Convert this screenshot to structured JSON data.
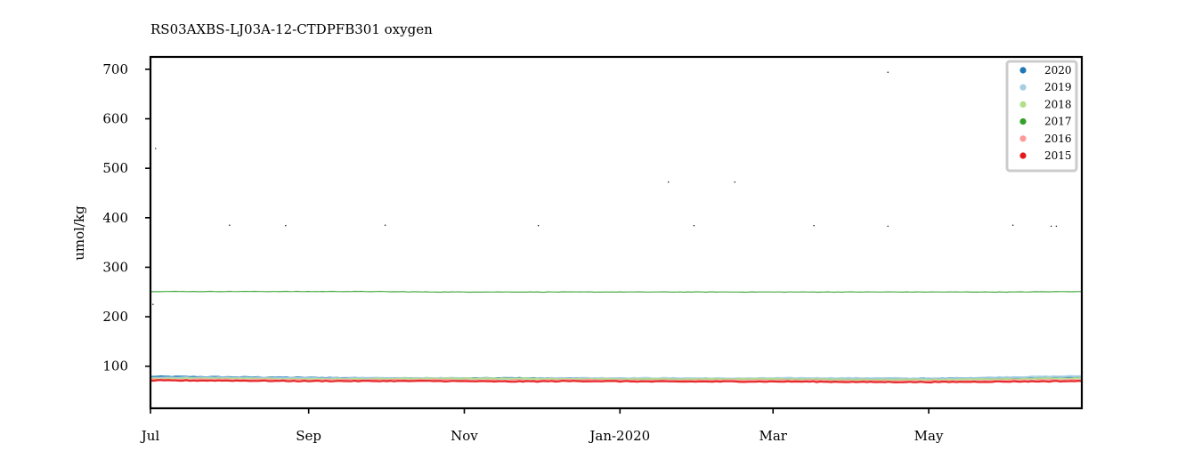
{
  "chart_data": {
    "type": "scatter",
    "title": "RS03AXBS-LJ03A-12-CTDPFB301 oxygen",
    "xlabel": "",
    "ylabel": "umol/kg",
    "x_tick_labels": [
      "Jul",
      "Sep",
      "Nov",
      "Jan-2020",
      "Mar",
      "May"
    ],
    "x_ticks": [
      "2019-07-01",
      "2019-09-01",
      "2019-11-01",
      "2020-01-01",
      "2020-03-01",
      "2020-05-01"
    ],
    "xlim": [
      "2019-07-01",
      "2020-06-30"
    ],
    "ylim": [
      15,
      725
    ],
    "y_ticks": [
      100,
      200,
      300,
      400,
      500,
      600,
      700
    ],
    "legend": {
      "position": "top-right"
    },
    "grid": false,
    "series": [
      {
        "name": "2020",
        "color": "#1f78b4",
        "x_range": [
          "2019-07-01",
          "2020-06-30"
        ],
        "values": [
          79,
          78,
          77,
          76,
          75,
          76,
          75,
          74,
          75,
          74,
          74,
          75,
          76,
          78
        ]
      },
      {
        "name": "2019",
        "color": "#a6cee3",
        "x_range": [
          "2019-07-01",
          "2020-06-30"
        ],
        "values": [
          77,
          77,
          76,
          76,
          76,
          75,
          76,
          76,
          75,
          76,
          76,
          75,
          78,
          80
        ]
      },
      {
        "name": "2018",
        "color": "#b2df8a",
        "x_range": [
          "2019-07-01",
          "2020-06-30"
        ],
        "values": [
          75,
          75,
          74,
          74,
          75,
          75,
          74,
          74,
          74,
          74,
          73,
          73,
          74,
          76
        ]
      },
      {
        "name": "2017",
        "color": "#33a02c",
        "x_range": [
          "2019-07-01",
          "2020-06-30"
        ],
        "values": [
          251,
          251,
          251,
          251,
          250,
          250,
          250,
          250,
          250,
          250,
          250,
          250,
          250,
          251
        ]
      },
      {
        "name": "2016",
        "color": "#fb9a99",
        "x_range": [
          "2019-07-01",
          "2020-06-30"
        ],
        "values": [
          73,
          73,
          72,
          72,
          72,
          71,
          72,
          71,
          71,
          71,
          70,
          70,
          71,
          72
        ]
      },
      {
        "name": "2015",
        "color": "#e31a1c",
        "x_range": [
          "2019-07-01",
          "2020-06-30"
        ],
        "values": [
          71,
          71,
          70,
          70,
          70,
          69,
          70,
          69,
          69,
          69,
          68,
          68,
          69,
          70
        ]
      }
    ],
    "outliers": [
      {
        "x": "2019-07-03",
        "y": 540
      },
      {
        "x": "2019-08-01",
        "y": 385
      },
      {
        "x": "2019-08-23",
        "y": 384
      },
      {
        "x": "2019-10-01",
        "y": 385
      },
      {
        "x": "2019-11-30",
        "y": 384
      },
      {
        "x": "2020-01-20",
        "y": 472
      },
      {
        "x": "2020-02-15",
        "y": 472
      },
      {
        "x": "2020-01-30",
        "y": 384
      },
      {
        "x": "2020-03-17",
        "y": 384
      },
      {
        "x": "2020-04-15",
        "y": 694
      },
      {
        "x": "2020-04-15",
        "y": 383
      },
      {
        "x": "2020-06-03",
        "y": 385
      },
      {
        "x": "2020-06-18",
        "y": 383
      },
      {
        "x": "2020-06-20",
        "y": 383
      },
      {
        "x": "2019-07-02",
        "y": 225
      }
    ]
  }
}
